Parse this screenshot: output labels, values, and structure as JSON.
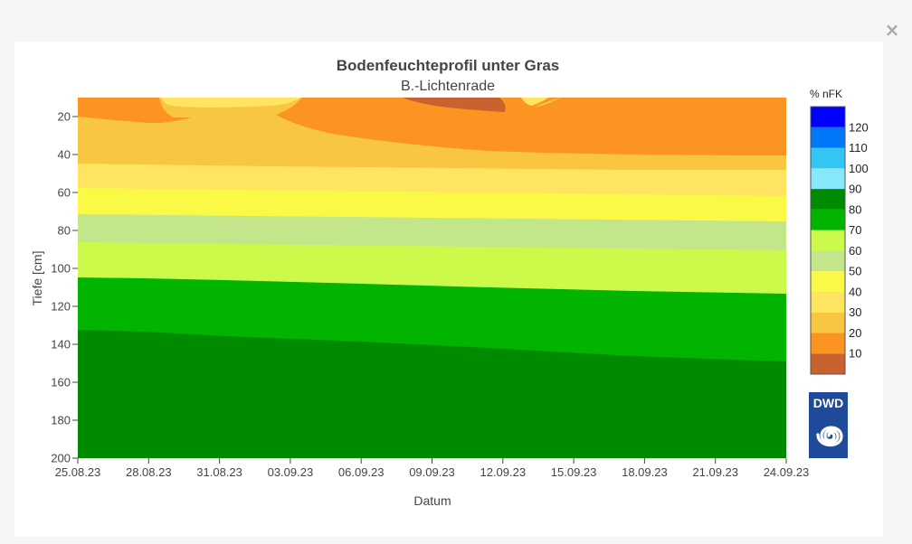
{
  "close_icon": "×",
  "chart_data": {
    "type": "heatmap",
    "title": "Bodenfeuchteprofil unter Gras",
    "subtitle": "B.-Lichtenrade",
    "xlabel": "Datum",
    "ylabel": "Tiefe [cm]",
    "x_ticks": [
      "25.08.23",
      "28.08.23",
      "31.08.23",
      "03.09.23",
      "06.09.23",
      "09.09.23",
      "12.09.23",
      "15.09.23",
      "18.09.23",
      "21.09.23",
      "24.09.23"
    ],
    "x_range": [
      "2023-08-25",
      "2023-09-24"
    ],
    "y_ticks": [
      20,
      40,
      60,
      80,
      100,
      120,
      140,
      160,
      180,
      200
    ],
    "y_range": [
      10,
      200
    ],
    "y_reversed": true,
    "colorbar": {
      "title": "% nFK",
      "tick_labels": [
        10,
        20,
        30,
        40,
        50,
        60,
        70,
        80,
        90,
        100,
        110,
        120
      ],
      "bands": [
        {
          "from": 0,
          "to": 10,
          "color": "#c8622f"
        },
        {
          "from": 10,
          "to": 20,
          "color": "#fb9420"
        },
        {
          "from": 20,
          "to": 30,
          "color": "#f9c642"
        },
        {
          "from": 30,
          "to": 40,
          "color": "#ffe462"
        },
        {
          "from": 40,
          "to": 50,
          "color": "#fafa46"
        },
        {
          "from": 50,
          "to": 60,
          "color": "#c4e68b"
        },
        {
          "from": 60,
          "to": 70,
          "color": "#cbfa4a"
        },
        {
          "from": 70,
          "to": 80,
          "color": "#00b400"
        },
        {
          "from": 80,
          "to": 90,
          "color": "#008a00"
        },
        {
          "from": 90,
          "to": 100,
          "color": "#87e8fc"
        },
        {
          "from": 100,
          "to": 110,
          "color": "#33c6f4"
        },
        {
          "from": 110,
          "to": 120,
          "color": "#0077f8"
        },
        {
          "from": 120,
          "to": 130,
          "color": "#0000ff"
        }
      ]
    },
    "contour_boundaries_depth_cm": [
      {
        "band": "20-30",
        "start": [
          10,
          10
        ],
        "end": [
          10,
          10
        ]
      },
      {
        "band": "30-40",
        "start": [
          44.5,
          44.5
        ],
        "end": [
          48,
          48
        ]
      },
      {
        "band": "40-50",
        "start": [
          57,
          57
        ],
        "end": [
          61,
          61
        ]
      },
      {
        "band": "50-60",
        "start": [
          71,
          71
        ],
        "end": [
          75,
          75
        ]
      },
      {
        "band": "60-70",
        "start": [
          86,
          86
        ],
        "end": [
          90,
          90
        ]
      },
      {
        "band": "70-80",
        "start": [
          104,
          104
        ],
        "end": [
          113,
          113
        ]
      },
      {
        "band": "80-90",
        "start": [
          132,
          132
        ],
        "end": [
          148.5,
          148.5
        ]
      }
    ]
  },
  "logo": {
    "text": "DWD",
    "bg_color": "#1f4a9a"
  }
}
